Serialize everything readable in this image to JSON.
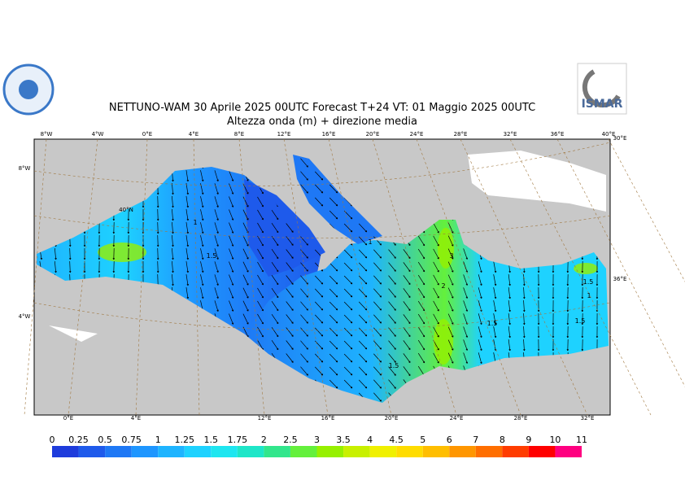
{
  "header": {
    "title_line1": "NETTUNO-WAM  30   Aprile  2025 00UTC Forecast T+24 VT: 01   Maggio  2025 00UTC",
    "title_line2": "Altezza onda (m) + direzione media",
    "logo_right": "ISMAR"
  },
  "map": {
    "top_labels": [
      "8°W",
      "4°W",
      "0°E",
      "4°E",
      "8°E",
      "12°E",
      "16°E",
      "20°E",
      "24°E",
      "28°E",
      "32°E",
      "36°E",
      "40°E"
    ],
    "bottom_labels": [
      "0°E",
      "4°E",
      "12°E",
      "16°E",
      "20°E",
      "24°E",
      "28°E",
      "32°E"
    ],
    "left_labels": [
      "8°W",
      "4°W"
    ],
    "right_labels": [
      "30°E",
      "36°E"
    ],
    "lat_label": "40°N",
    "contour_labels": [
      "1",
      "1.5",
      "1",
      "3",
      "2",
      "1.5",
      "1",
      "1.5",
      "1.5",
      "1.5"
    ]
  },
  "legend": {
    "levels": [
      0,
      0.25,
      0.5,
      0.75,
      1,
      1.25,
      1.5,
      1.75,
      2,
      2.5,
      3,
      3.5,
      4,
      4.5,
      5,
      6,
      7,
      8,
      9,
      10,
      11
    ],
    "colors": [
      "#1e3cdc",
      "#1e5aeb",
      "#1e78f5",
      "#1e96ff",
      "#1eb4ff",
      "#1ed2ff",
      "#1ee6f0",
      "#1ee6c8",
      "#32e68c",
      "#64f03c",
      "#96f000",
      "#c8f000",
      "#f0f000",
      "#ffdc00",
      "#ffbe00",
      "#ff9600",
      "#ff6e00",
      "#ff3c00",
      "#ff0000",
      "#ff0080",
      "#ff1ed2"
    ]
  }
}
